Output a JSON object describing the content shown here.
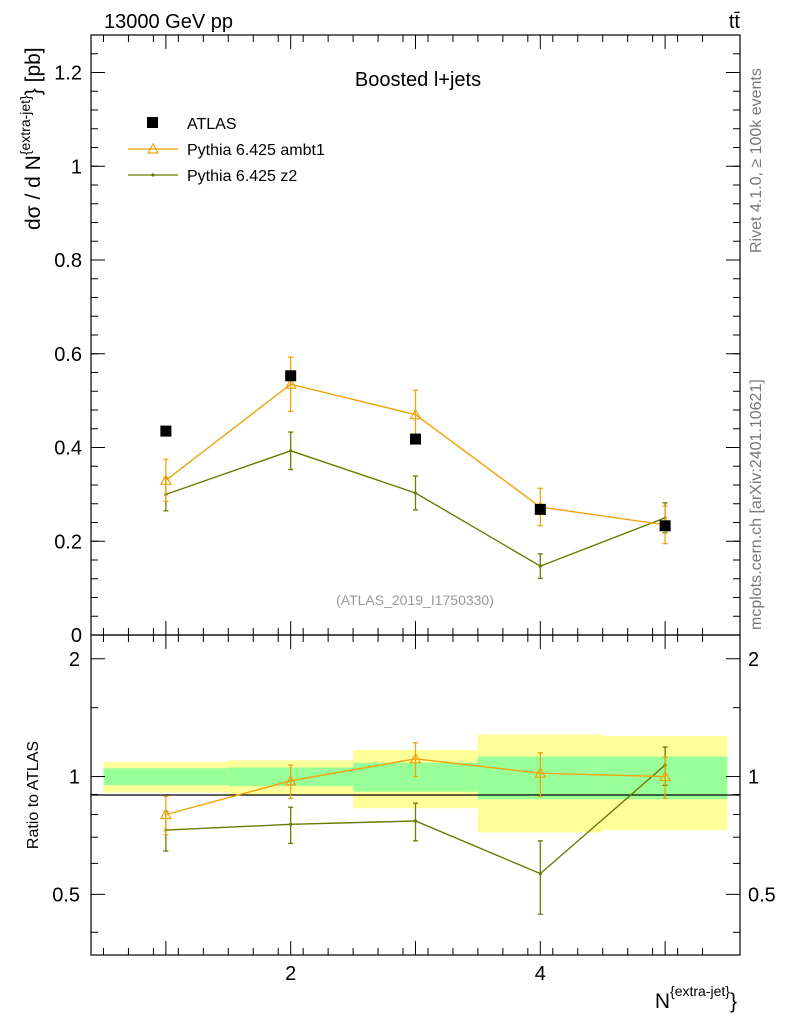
{
  "header": {
    "left": "13000 GeV pp",
    "right": "tt̄"
  },
  "side_labels": {
    "rivet": "Rivet 4.1.0, ≥ 100k events",
    "mcplots": "mcplots.cern.ch [arXiv:2401.10621]"
  },
  "chart_data": [
    {
      "type": "scatter",
      "panel": "main",
      "title": "Boosted l+jets",
      "watermark": "(ATLAS_2019_I1750330)",
      "ylabel": "dσ / d N^{extra-jet} [pb]",
      "ylabel_main": "dσ / d N",
      "ylabel_sup": "{extra-jet}",
      "ylabel_tail": "} [pb]",
      "xlim": [
        0.4,
        5.6
      ],
      "ylim": [
        0,
        1.28
      ],
      "yticks": [
        0,
        0.2,
        0.4,
        0.6,
        0.8,
        1,
        1.2
      ],
      "ytick_labels": [
        "0",
        "0.2",
        "0.4",
        "0.6",
        "0.8",
        "1",
        "1.2"
      ],
      "legend": [
        "ATLAS",
        "Pythia 6.425 ambt1",
        "Pythia 6.425 z2"
      ],
      "colors": {
        "data": "#000000",
        "ambt1": "#f0a30a",
        "z2": "#6b7a00"
      },
      "series": [
        {
          "name": "ATLAS",
          "x": [
            1,
            2,
            3,
            4,
            5
          ],
          "y": [
            0.435,
            0.553,
            0.418,
            0.268,
            0.233
          ],
          "err": [
            0,
            0,
            0,
            0,
            0
          ]
        },
        {
          "name": "Pythia 6.425 ambt1",
          "x": [
            1,
            2,
            3,
            4,
            5
          ],
          "y": [
            0.33,
            0.535,
            0.47,
            0.273,
            0.235
          ],
          "err": [
            0.045,
            0.058,
            0.052,
            0.04,
            0.04
          ]
        },
        {
          "name": "Pythia 6.425 z2",
          "x": [
            1,
            2,
            3,
            4,
            5
          ],
          "y": [
            0.3,
            0.393,
            0.303,
            0.147,
            0.25
          ],
          "err": [
            0.035,
            0.04,
            0.036,
            0.026,
            0.032
          ]
        }
      ]
    },
    {
      "type": "line",
      "panel": "ratio",
      "ylabel": "Ratio to ATLAS",
      "xlabel": "N^{extra-jet}",
      "xlabel_main": "N",
      "xlabel_sup": "{extra-jet}",
      "xlabel_tail": "}",
      "xlim": [
        0.4,
        5.6
      ],
      "ylim": [
        0.35,
        2.3
      ],
      "yscale": "log",
      "yticks": [
        0.5,
        1,
        2
      ],
      "ytick_labels": [
        "0.5",
        "1",
        "2"
      ],
      "xticks": [
        2,
        4
      ],
      "xtick_labels": [
        "2",
        "4"
      ],
      "bands": [
        {
          "x0": 0.5,
          "x1": 1.5,
          "inner": [
            0.95,
            1.05
          ],
          "outer": [
            0.91,
            1.09
          ]
        },
        {
          "x0": 1.5,
          "x1": 2.5,
          "inner": [
            0.945,
            1.055
          ],
          "outer": [
            0.9,
            1.1
          ]
        },
        {
          "x0": 2.5,
          "x1": 3.5,
          "inner": [
            0.915,
            1.085
          ],
          "outer": [
            0.83,
            1.17
          ]
        },
        {
          "x0": 3.5,
          "x1": 4.5,
          "inner": [
            0.875,
            1.125
          ],
          "outer": [
            0.72,
            1.28
          ]
        },
        {
          "x0": 4.5,
          "x1": 5.5,
          "inner": [
            0.875,
            1.125
          ],
          "outer": [
            0.73,
            1.27
          ]
        }
      ],
      "band_colors": {
        "inner": "#99ff99",
        "outer": "#ffff99"
      },
      "series": [
        {
          "name": "Pythia 6.425 ambt1",
          "x": [
            1,
            2,
            3,
            4,
            5
          ],
          "y": [
            0.8,
            0.975,
            1.11,
            1.02,
            1.0
          ],
          "err": [
            0.09,
            0.095,
            0.11,
            0.13,
            0.12
          ]
        },
        {
          "name": "Pythia 6.425 z2",
          "x": [
            1,
            2,
            3,
            4,
            5
          ],
          "y": [
            0.73,
            0.755,
            0.77,
            0.565,
            1.07
          ],
          "err": [
            0.085,
            0.08,
            0.085,
            0.12,
            0.12
          ]
        }
      ]
    }
  ]
}
